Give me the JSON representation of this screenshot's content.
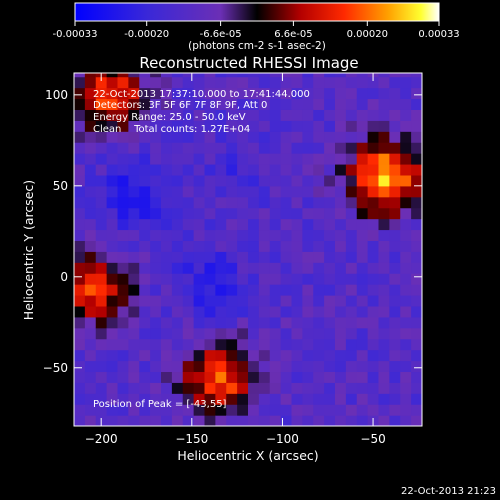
{
  "chart_data": {
    "type": "heatmap",
    "title": "Reconstructed RHESSI Image",
    "xlabel": "Heliocentric X (arcsec)",
    "ylabel": "Heliocentric Y (arcsec)",
    "x_range": [
      -215,
      -23
    ],
    "y_range": [
      -82,
      112
    ],
    "x_ticks": [
      -200,
      -150,
      -100,
      -50
    ],
    "y_ticks": [
      100,
      50,
      0,
      -50
    ],
    "grid": false,
    "colorbar": {
      "position": "top",
      "range": [
        -0.00033,
        0.00033
      ],
      "tick_labels": [
        "-0.00033",
        "-0.00020",
        "-6.6e-05",
        "6.6e-05",
        "0.00020",
        "0.00033"
      ],
      "tick_values": [
        -0.00033,
        -0.0002,
        -6.6e-05,
        6.6e-05,
        0.0002,
        0.00033
      ],
      "unit_label": "(photons cm-2 s-1 asec-2)"
    },
    "annotations": [
      "22-Oct-2013 17:37:10.000 to 17:41:44.000",
      "Detectors: 3F 5F 6F 7F 8F 9F, Att 0",
      "Energy Range: 25.0 - 50.0 keV",
      "Clean    Total counts: 1.27E+04"
    ],
    "peak_label": "Position of Peak = [-43,55]",
    "peak_position": [
      -43,
      55
    ],
    "colors": {
      "negative_max": "#0000ff",
      "background": "#6b2fb5",
      "zero": "#000000",
      "positive_mid": "#ff2a00",
      "positive_high": "#ffff00",
      "positive_max": "#ffffff"
    },
    "sources": [
      {
        "x": -43,
        "y": 55,
        "value": 0.00026
      },
      {
        "x": -195,
        "y": 100,
        "value": 0.00016
      },
      {
        "x": -205,
        "y": -5,
        "value": 0.00015
      },
      {
        "x": -135,
        "y": -55,
        "value": 0.00018
      },
      {
        "x": -180,
        "y": 45,
        "value": -0.00013
      },
      {
        "x": -140,
        "y": -5,
        "value": -0.0001
      },
      {
        "x": -125,
        "y": 60,
        "value": -5e-05
      }
    ]
  },
  "footer": {
    "timestamp": "22-Oct-2013 21:23"
  }
}
